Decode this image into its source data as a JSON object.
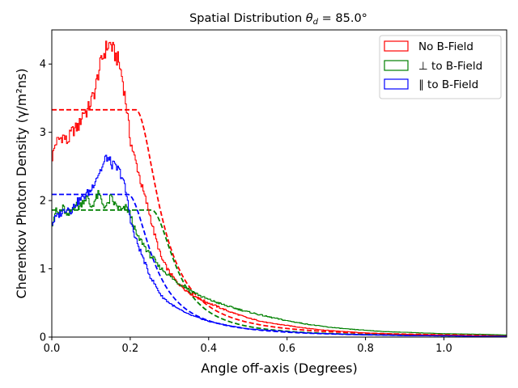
{
  "chart_data": {
    "type": "line",
    "title_prefix": "Spatial Distribution ",
    "title_symbol": "θ",
    "title_sub": "d",
    "title_suffix": " = 85.0°",
    "xlabel": "Angle off-axis (Degrees)",
    "ylabel": "Cherenkov Photon Density (γ/m²ns)",
    "xlim": [
      0,
      1.16
    ],
    "ylim": [
      0,
      4.5
    ],
    "xticks": [
      0.0,
      0.2,
      0.4,
      0.6,
      0.8,
      1.0
    ],
    "xtick_labels": [
      "0.0",
      "0.2",
      "0.4",
      "0.6",
      "0.8",
      "1.0"
    ],
    "yticks": [
      0,
      1,
      2,
      3,
      4
    ],
    "ytick_labels": [
      "0",
      "1",
      "2",
      "3",
      "4"
    ],
    "grid": false,
    "legend_position": "top-right",
    "series": [
      {
        "name": "No B-Field",
        "color": "#ff0000",
        "style": "step",
        "x": [
          0.0,
          0.01,
          0.02,
          0.03,
          0.04,
          0.05,
          0.06,
          0.07,
          0.08,
          0.09,
          0.1,
          0.11,
          0.12,
          0.13,
          0.14,
          0.15,
          0.16,
          0.17,
          0.18,
          0.19,
          0.2,
          0.21,
          0.22,
          0.23,
          0.24,
          0.25,
          0.26,
          0.27,
          0.28,
          0.3,
          0.32,
          0.35,
          0.38,
          0.4,
          0.45,
          0.5,
          0.55,
          0.6,
          0.65,
          0.7,
          0.75,
          0.8,
          0.85,
          0.9,
          1.0,
          1.1,
          1.16
        ],
        "y": [
          2.6,
          2.85,
          2.9,
          2.95,
          2.85,
          3.0,
          3.05,
          3.1,
          3.3,
          3.3,
          3.45,
          3.6,
          3.9,
          4.1,
          4.25,
          4.3,
          4.15,
          4.05,
          3.8,
          3.4,
          2.9,
          2.65,
          2.45,
          2.2,
          2.0,
          1.8,
          1.55,
          1.35,
          1.15,
          0.95,
          0.8,
          0.65,
          0.55,
          0.5,
          0.38,
          0.28,
          0.21,
          0.17,
          0.13,
          0.1,
          0.08,
          0.06,
          0.05,
          0.04,
          0.03,
          0.02,
          0.02
        ]
      },
      {
        "name": "⊥ to B-Field",
        "color": "#008000",
        "style": "step",
        "x": [
          0.0,
          0.01,
          0.02,
          0.03,
          0.04,
          0.05,
          0.06,
          0.07,
          0.08,
          0.09,
          0.1,
          0.11,
          0.12,
          0.13,
          0.14,
          0.15,
          0.16,
          0.17,
          0.18,
          0.19,
          0.2,
          0.21,
          0.22,
          0.23,
          0.24,
          0.25,
          0.26,
          0.27,
          0.28,
          0.3,
          0.32,
          0.35,
          0.38,
          0.4,
          0.45,
          0.5,
          0.55,
          0.6,
          0.65,
          0.7,
          0.75,
          0.8,
          0.85,
          0.9,
          1.0,
          1.1,
          1.16
        ],
        "y": [
          1.65,
          1.85,
          1.8,
          1.9,
          1.75,
          1.85,
          1.95,
          1.9,
          2.0,
          2.05,
          1.9,
          2.0,
          2.1,
          1.95,
          1.9,
          2.05,
          1.95,
          1.9,
          1.85,
          1.9,
          1.8,
          1.6,
          1.45,
          1.4,
          1.3,
          1.2,
          1.15,
          1.05,
          1.0,
          0.9,
          0.8,
          0.7,
          0.6,
          0.55,
          0.45,
          0.37,
          0.3,
          0.24,
          0.19,
          0.15,
          0.12,
          0.1,
          0.08,
          0.07,
          0.05,
          0.04,
          0.03
        ]
      },
      {
        "name": "∥ to B-Field",
        "color": "#0000ff",
        "style": "step",
        "x": [
          0.0,
          0.01,
          0.02,
          0.03,
          0.04,
          0.05,
          0.06,
          0.07,
          0.08,
          0.09,
          0.1,
          0.11,
          0.12,
          0.13,
          0.14,
          0.15,
          0.16,
          0.17,
          0.18,
          0.19,
          0.2,
          0.21,
          0.22,
          0.23,
          0.24,
          0.25,
          0.26,
          0.27,
          0.28,
          0.3,
          0.32,
          0.35,
          0.38,
          0.4,
          0.45,
          0.5,
          0.55,
          0.6,
          0.65,
          0.7,
          0.75,
          0.8,
          0.85,
          0.9,
          1.0,
          1.1,
          1.16
        ],
        "y": [
          1.65,
          1.75,
          1.8,
          1.85,
          1.9,
          1.85,
          1.95,
          2.0,
          2.05,
          2.1,
          2.15,
          2.3,
          2.4,
          2.5,
          2.65,
          2.55,
          2.5,
          2.45,
          2.35,
          2.1,
          1.75,
          1.5,
          1.35,
          1.2,
          1.05,
          0.9,
          0.8,
          0.7,
          0.6,
          0.5,
          0.42,
          0.33,
          0.27,
          0.23,
          0.17,
          0.12,
          0.1,
          0.08,
          0.06,
          0.05,
          0.04,
          0.03,
          0.03,
          0.02,
          0.02,
          0.01,
          0.01
        ]
      }
    ],
    "model_curves": [
      {
        "name": "No B-Field model",
        "color": "#ff0000",
        "plateau": 3.33,
        "plateau_end": 0.215
      },
      {
        "name": "⊥ to B-Field model",
        "color": "#008000",
        "plateau": 1.86,
        "plateau_end": 0.255
      },
      {
        "name": "∥ to B-Field model",
        "color": "#0000ff",
        "plateau": 2.09,
        "plateau_end": 0.195
      }
    ]
  }
}
